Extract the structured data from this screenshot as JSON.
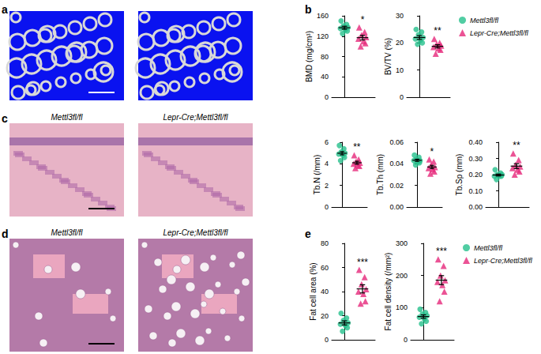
{
  "panel_labels": [
    "a",
    "b",
    "c",
    "d",
    "e"
  ],
  "image_panels": [
    {
      "label": "a",
      "captions": [
        null,
        null
      ]
    },
    {
      "label": "c",
      "captions": [
        "Mettl3fl/fl",
        "Lepr-Cre;Mettl3fl/fl"
      ]
    },
    {
      "label": "d",
      "captions": [
        "Mettl3fl/fl",
        "Lepr-Cre;Mettl3fl/fl"
      ]
    }
  ],
  "chart_data": [
    {
      "type": "scatter",
      "y_label": "BMD (mg/cm³)",
      "ylim": [
        0,
        160
      ],
      "yticks": [
        0,
        40,
        80,
        120,
        160
      ],
      "tick_labels": "y",
      "significance": "*",
      "series": [
        {
          "name": "Mettl3fl/fl",
          "color": "#25c08c",
          "marker": "circle",
          "values": [
            150,
            143,
            140,
            137,
            135,
            132,
            130,
            125
          ],
          "mean": 136.5,
          "error": 3
        },
        {
          "name": "Lepr-Cre;Mettl3fl/fl",
          "color": "#e6287a",
          "marker": "triangle",
          "values": [
            137,
            128,
            122,
            118,
            115,
            110,
            106,
            100
          ],
          "mean": 117,
          "error": 4.5
        }
      ]
    },
    {
      "type": "scatter",
      "y_label": "BV/TV (%)",
      "ylim": [
        0,
        30
      ],
      "yticks": [
        0,
        10,
        20,
        30
      ],
      "tick_labels": "y",
      "significance": "**",
      "legend": "right",
      "series": [
        {
          "name": "Mettl3fl/fl",
          "color": "#25c08c",
          "marker": "circle",
          "values": [
            25,
            24,
            23,
            22,
            21.5,
            21,
            20,
            19.5
          ],
          "mean": 22,
          "error": 0.7
        },
        {
          "name": "Lepr-Cre;Mettl3fl/fl",
          "color": "#e6287a",
          "marker": "triangle",
          "values": [
            21.5,
            20,
            19.5,
            19,
            18.5,
            18,
            17.5,
            16
          ],
          "mean": 18.75,
          "error": 0.6
        }
      ]
    },
    {
      "type": "scatter",
      "y_label": "Tb.N (/mm)",
      "ylim": [
        0,
        6
      ],
      "yticks": [
        0,
        2,
        4,
        6
      ],
      "tick_labels": "y",
      "significance": "**",
      "series": [
        {
          "name": "Mettl3fl/fl",
          "color": "#25c08c",
          "marker": "circle",
          "values": [
            5.7,
            5.4,
            5.1,
            5,
            4.9,
            4.8,
            4.6,
            4.3
          ],
          "mean": 4.98,
          "error": 0.15
        },
        {
          "name": "Lepr-Cre;Mettl3fl/fl",
          "color": "#e6287a",
          "marker": "triangle",
          "values": [
            4.8,
            4.4,
            4.2,
            4.1,
            4,
            3.9,
            3.8,
            3.6
          ],
          "mean": 4.1,
          "error": 0.14
        }
      ]
    },
    {
      "type": "scatter",
      "y_label": "Tb.Th (mm)",
      "ylim": [
        0,
        0.06
      ],
      "yticks": [
        {
          "value": 0,
          "label": "0.00"
        },
        0.02,
        0.04,
        0.06
      ],
      "tick_labels": "y",
      "significance": "*",
      "series": [
        {
          "name": "Mettl3fl/fl",
          "color": "#25c08c",
          "marker": "circle",
          "values": [
            0.048,
            0.046,
            0.044,
            0.043,
            0.043,
            0.042,
            0.041,
            0.039
          ],
          "mean": 0.0433,
          "error": 0.001
        },
        {
          "name": "Lepr-Cre;Mettl3fl/fl",
          "color": "#e6287a",
          "marker": "triangle",
          "values": [
            0.044,
            0.042,
            0.039,
            0.037,
            0.036,
            0.035,
            0.033,
            0.031
          ],
          "mean": 0.0371,
          "error": 0.0015
        }
      ]
    },
    {
      "type": "scatter",
      "y_label": "Tb.Sp (mm)",
      "ylim": [
        0,
        0.4
      ],
      "yticks": [
        {
          "value": 0,
          "label": "0.00"
        },
        {
          "value": 0.1,
          "label": "0.10"
        },
        {
          "value": 0.2,
          "label": "0.20"
        },
        {
          "value": 0.3,
          "label": "0.30"
        },
        {
          "value": 0.4,
          "label": "0.40"
        }
      ],
      "tick_labels": "y",
      "significance": "**",
      "series": [
        {
          "name": "Mettl3fl/fl",
          "color": "#25c08c",
          "marker": "circle",
          "values": [
            0.23,
            0.21,
            0.2,
            0.2,
            0.19,
            0.19,
            0.19,
            0.17
          ],
          "mean": 0.1975,
          "error": 0.006
        },
        {
          "name": "Lepr-Cre;Mettl3fl/fl",
          "color": "#e6287a",
          "marker": "triangle",
          "values": [
            0.33,
            0.29,
            0.26,
            0.25,
            0.24,
            0.23,
            0.22,
            0.2
          ],
          "mean": 0.2525,
          "error": 0.015
        }
      ]
    },
    {
      "type": "scatter",
      "y_label": "Fat cell area (%)",
      "ylim": [
        0,
        80
      ],
      "yticks": [
        0,
        20,
        40,
        60,
        80
      ],
      "tick_labels": "y",
      "significance": "***",
      "series": [
        {
          "name": "Mettl3fl/fl",
          "color": "#25c08c",
          "marker": "circle",
          "values": [
            22,
            18,
            16,
            14,
            13,
            12,
            10,
            7
          ],
          "mean": 14,
          "error": 1.7
        },
        {
          "name": "Lepr-Cre;Mettl3fl/fl",
          "color": "#e6287a",
          "marker": "triangle",
          "values": [
            58,
            52,
            46,
            42,
            40,
            38,
            32,
            30
          ],
          "mean": 42.25,
          "error": 3.4
        }
      ]
    },
    {
      "type": "scatter",
      "y_label": "Fat cell density (/mm²)",
      "ylim": [
        0,
        300
      ],
      "yticks": [
        0,
        100,
        200,
        300
      ],
      "tick_labels": "y",
      "significance": "***",
      "legend": "right",
      "series": [
        {
          "name": "Mettl3fl/fl",
          "color": "#25c08c",
          "marker": "circle",
          "values": [
            95,
            85,
            80,
            75,
            70,
            65,
            58,
            50
          ],
          "mean": 72.25,
          "error": 5.3
        },
        {
          "name": "Lepr-Cre;Mettl3fl/fl",
          "color": "#e6287a",
          "marker": "triangle",
          "values": [
            250,
            230,
            200,
            185,
            180,
            170,
            150,
            120
          ],
          "mean": 185.6,
          "error": 14
        }
      ]
    }
  ]
}
